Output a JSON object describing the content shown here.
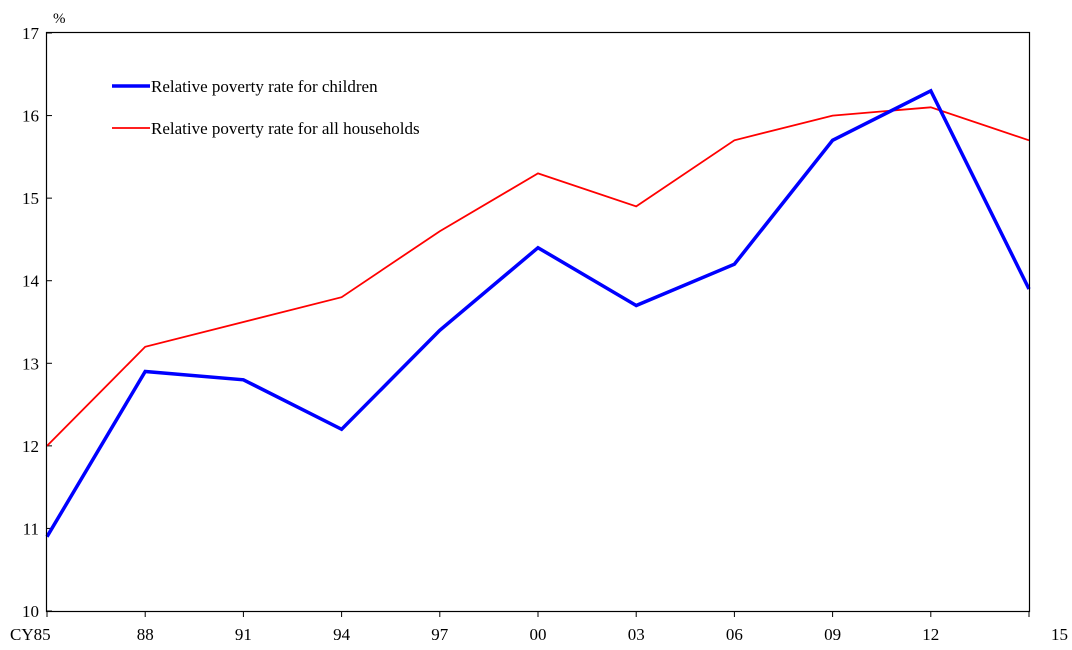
{
  "chart_data": {
    "type": "line",
    "title": "",
    "xlabel": "",
    "ylabel": "%",
    "categories": [
      "CY85",
      "88",
      "91",
      "94",
      "97",
      "00",
      "03",
      "06",
      "09",
      "12",
      "15"
    ],
    "ylim": [
      10,
      17
    ],
    "yticks": [
      "10",
      "11",
      "12",
      "13",
      "14",
      "15",
      "16",
      "17"
    ],
    "grid": false,
    "legend_position": "top-left",
    "series": [
      {
        "name": "Relative poverty rate for children",
        "color": "#0000ff",
        "values": [
          10.9,
          12.9,
          12.8,
          12.2,
          13.4,
          14.4,
          13.7,
          14.2,
          15.7,
          16.3,
          13.9
        ]
      },
      {
        "name": "Relative poverty rate for all households",
        "color": "#ff0000",
        "values": [
          12.0,
          13.2,
          13.5,
          13.8,
          14.6,
          15.3,
          14.9,
          15.7,
          16.0,
          16.1,
          15.7
        ]
      }
    ]
  }
}
